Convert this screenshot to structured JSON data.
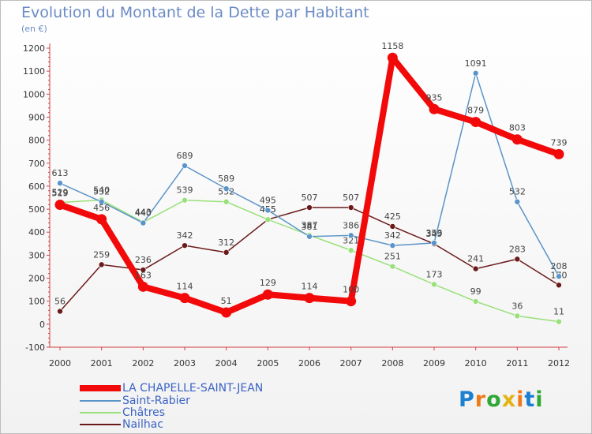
{
  "title": "Evolution du Montant de la Dette par Habitant",
  "unit": "(en €)",
  "logo": "Proxiti",
  "chart_data": {
    "type": "line",
    "x": [
      "2000",
      "2001",
      "2002",
      "2003",
      "2004",
      "2005",
      "2006",
      "2007",
      "2008",
      "2009",
      "2010",
      "2011",
      "2012"
    ],
    "ylim": [
      -100,
      1200
    ],
    "yticks": [
      -100,
      0,
      100,
      200,
      300,
      400,
      500,
      600,
      700,
      800,
      900,
      1000,
      1100,
      1200
    ],
    "grid": false,
    "legend_position": "bottom-left",
    "series": [
      {
        "name": "Nailhac",
        "color": "#6b1a1a",
        "values": [
          56,
          259,
          236,
          342,
          312,
          455,
          507,
          507,
          425,
          349,
          241,
          283,
          170
        ]
      },
      {
        "name": "Châtres",
        "color": "#99e07a",
        "values": [
          529,
          540,
          443,
          539,
          532,
          455,
          387,
          321,
          251,
          173,
          99,
          36,
          11
        ]
      },
      {
        "name": "Saint-Rabier",
        "color": "#5b94c8",
        "values": [
          613,
          532,
          440,
          689,
          589,
          495,
          381,
          386,
          342,
          353,
          1091,
          532,
          208
        ]
      },
      {
        "name": "LA CHAPELLE-SAINT-JEAN",
        "color": "#f20a0a",
        "values": [
          519,
          456,
          163,
          114,
          51,
          129,
          114,
          100,
          1158,
          935,
          879,
          803,
          739
        ]
      }
    ],
    "legend_order": [
      "LA CHAPELLE-SAINT-JEAN",
      "Saint-Rabier",
      "Châtres",
      "Nailhac"
    ]
  }
}
